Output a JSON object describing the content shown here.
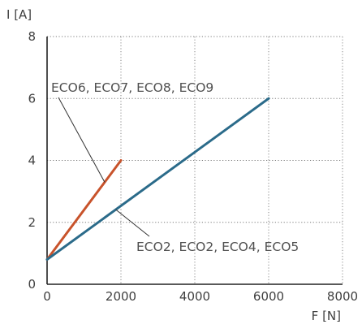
{
  "chart_data": {
    "type": "line",
    "xlabel": "F [N]",
    "ylabel": "I [A]",
    "xlim": [
      0,
      8000
    ],
    "ylim": [
      0,
      8
    ],
    "x_ticks": [
      "0",
      "2000",
      "4000",
      "6000",
      "8000"
    ],
    "y_ticks": [
      "0",
      "2",
      "4",
      "6",
      "8"
    ],
    "grid": true,
    "series": [
      {
        "name": "ECO6, ECO7, ECO8, ECO9",
        "color": "#c8532b",
        "x": [
          0,
          2000
        ],
        "y": [
          0.8,
          4.0
        ]
      },
      {
        "name": "ECO2, ECO2, ECO4, ECO5",
        "color": "#2b6b8a",
        "x": [
          0,
          6000
        ],
        "y": [
          0.8,
          6.0
        ]
      }
    ]
  }
}
